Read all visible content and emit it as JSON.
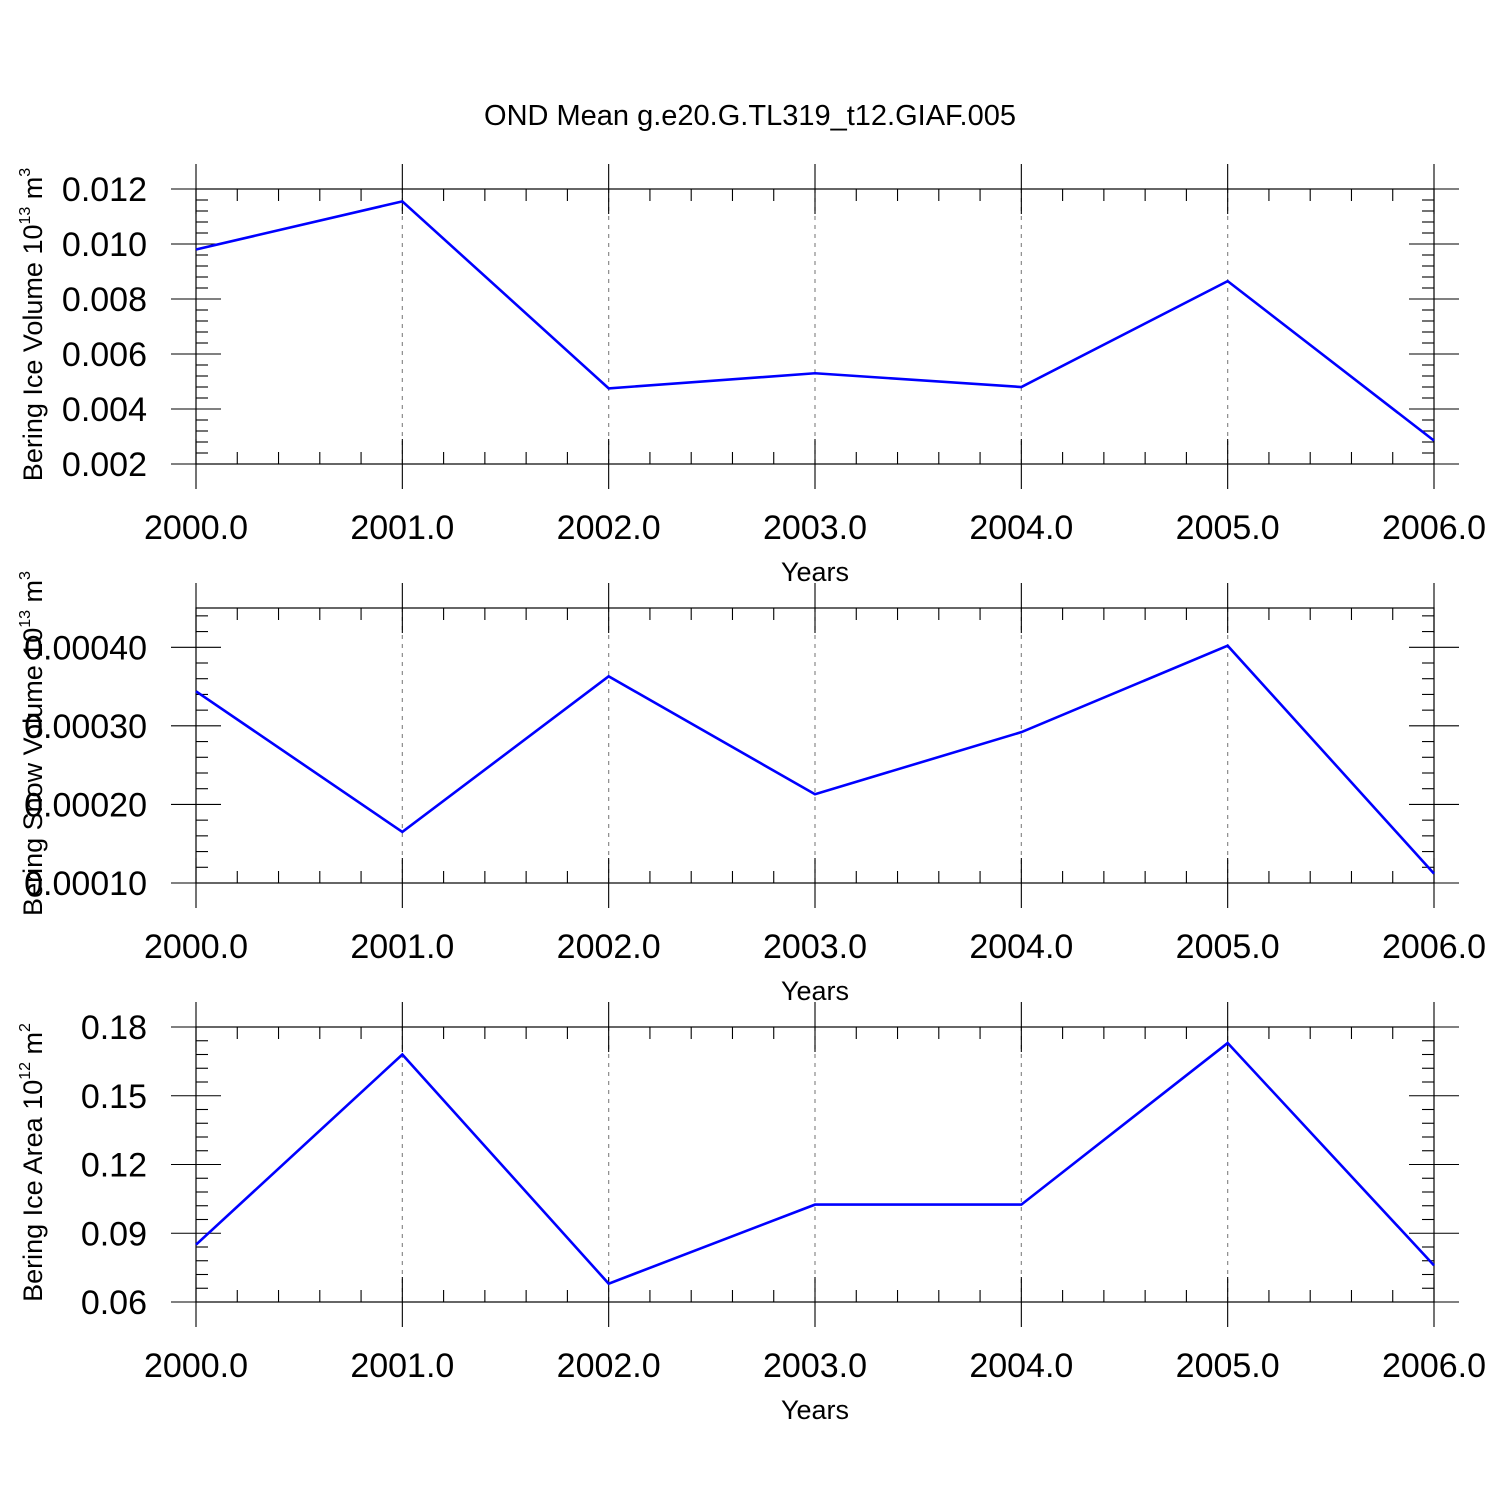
{
  "title": "OND Mean g.e20.G.TL319_t12.GIAF.005",
  "colors": {
    "line": "#0000ff",
    "grid": "#8a8a8a"
  },
  "chart_data": [
    {
      "type": "line",
      "xlabel": "Years",
      "ylabel_main": "Bering Ice Volume 10",
      "ylabel_sup": "13",
      "ylabel_unit": " m",
      "ylabel_unit_sup": "3",
      "xlim": [
        2000,
        2006
      ],
      "ylim": [
        0.002,
        0.012
      ],
      "x_ticks": [
        "2000.0",
        "2001.0",
        "2002.0",
        "2003.0",
        "2004.0",
        "2005.0",
        "2006.0"
      ],
      "y_ticks": [
        0.002,
        0.004,
        0.006,
        0.008,
        0.01,
        0.012
      ],
      "y_tick_labels": [
        "0.002",
        "0.004",
        "0.006",
        "0.008",
        "0.010",
        "0.012"
      ],
      "x": [
        2000,
        2001,
        2002,
        2003,
        2004,
        2005,
        2006
      ],
      "values": [
        0.0098,
        0.01155,
        0.00475,
        0.0053,
        0.0048,
        0.00865,
        0.00285
      ]
    },
    {
      "type": "line",
      "xlabel": "Years",
      "ylabel_main": "Bering Snow Volume 10",
      "ylabel_sup": "13",
      "ylabel_unit": " m",
      "ylabel_unit_sup": "3",
      "xlim": [
        2000,
        2006
      ],
      "ylim": [
        0.0001,
        0.00045
      ],
      "x_ticks": [
        "2000.0",
        "2001.0",
        "2002.0",
        "2003.0",
        "2004.0",
        "2005.0",
        "2006.0"
      ],
      "y_ticks": [
        0.0001,
        0.0002,
        0.0003,
        0.0004
      ],
      "y_tick_labels": [
        "0.00010",
        "0.00020",
        "0.00030",
        "0.00040"
      ],
      "x": [
        2000,
        2001,
        2002,
        2003,
        2004,
        2005,
        2006
      ],
      "values": [
        0.000344,
        0.000165,
        0.000363,
        0.000213,
        0.000292,
        0.000402,
        0.000112
      ]
    },
    {
      "type": "line",
      "xlabel": "Years",
      "ylabel_main": "Bering Ice Area 10",
      "ylabel_sup": "12",
      "ylabel_unit": " m",
      "ylabel_unit_sup": "2",
      "xlim": [
        2000,
        2006
      ],
      "ylim": [
        0.06,
        0.18
      ],
      "x_ticks": [
        "2000.0",
        "2001.0",
        "2002.0",
        "2003.0",
        "2004.0",
        "2005.0",
        "2006.0"
      ],
      "y_ticks": [
        0.06,
        0.09,
        0.12,
        0.15,
        0.18
      ],
      "y_tick_labels": [
        "0.06",
        "0.09",
        "0.12",
        "0.15",
        "0.18"
      ],
      "x": [
        2000,
        2001,
        2002,
        2003,
        2004,
        2005,
        2006
      ],
      "values": [
        0.085,
        0.168,
        0.068,
        0.1025,
        0.1025,
        0.173,
        0.076
      ]
    }
  ]
}
